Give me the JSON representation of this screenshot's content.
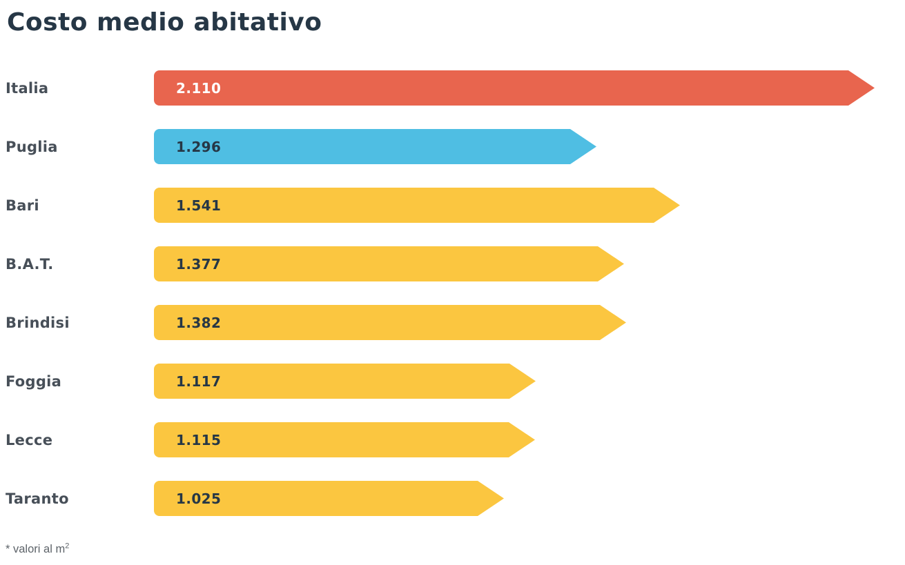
{
  "title": "Costo medio abitativo",
  "footnote": {
    "text": "* valori al m",
    "superscript": "2"
  },
  "colors": {
    "background": "#FFFFFF",
    "title": "#263746",
    "category_label": "#474F58",
    "footnote": "#5D6369",
    "accent_red": "#E8654E",
    "accent_blue": "#4FBEE3",
    "accent_yellow": "#FBC640"
  },
  "chart_data": {
    "type": "bar",
    "orientation": "horizontal",
    "title": "Costo medio abitativo",
    "categories": [
      "Italia",
      "Puglia",
      "Bari",
      "B.A.T.",
      "Brindisi",
      "Foggia",
      "Lecce",
      "Taranto"
    ],
    "values": [
      2110,
      1296,
      1541,
      1377,
      1382,
      1117,
      1115,
      1025
    ],
    "value_labels": [
      "2.110",
      "1.296",
      "1.541",
      "1.377",
      "1.382",
      "1.117",
      "1.115",
      "1.025"
    ],
    "bar_colors": [
      "#E8654E",
      "#4FBEE3",
      "#FBC640",
      "#FBC640",
      "#FBC640",
      "#FBC640",
      "#FBC640",
      "#FBC640"
    ],
    "value_text_colors": [
      "#FFFFFF",
      "#263746",
      "#263746",
      "#263746",
      "#263746",
      "#263746",
      "#263746",
      "#263746"
    ],
    "xlim": [
      0,
      2200
    ],
    "grid": false,
    "legend": false,
    "annotation": "* valori al m²",
    "bar_shape": "arrow-right"
  }
}
